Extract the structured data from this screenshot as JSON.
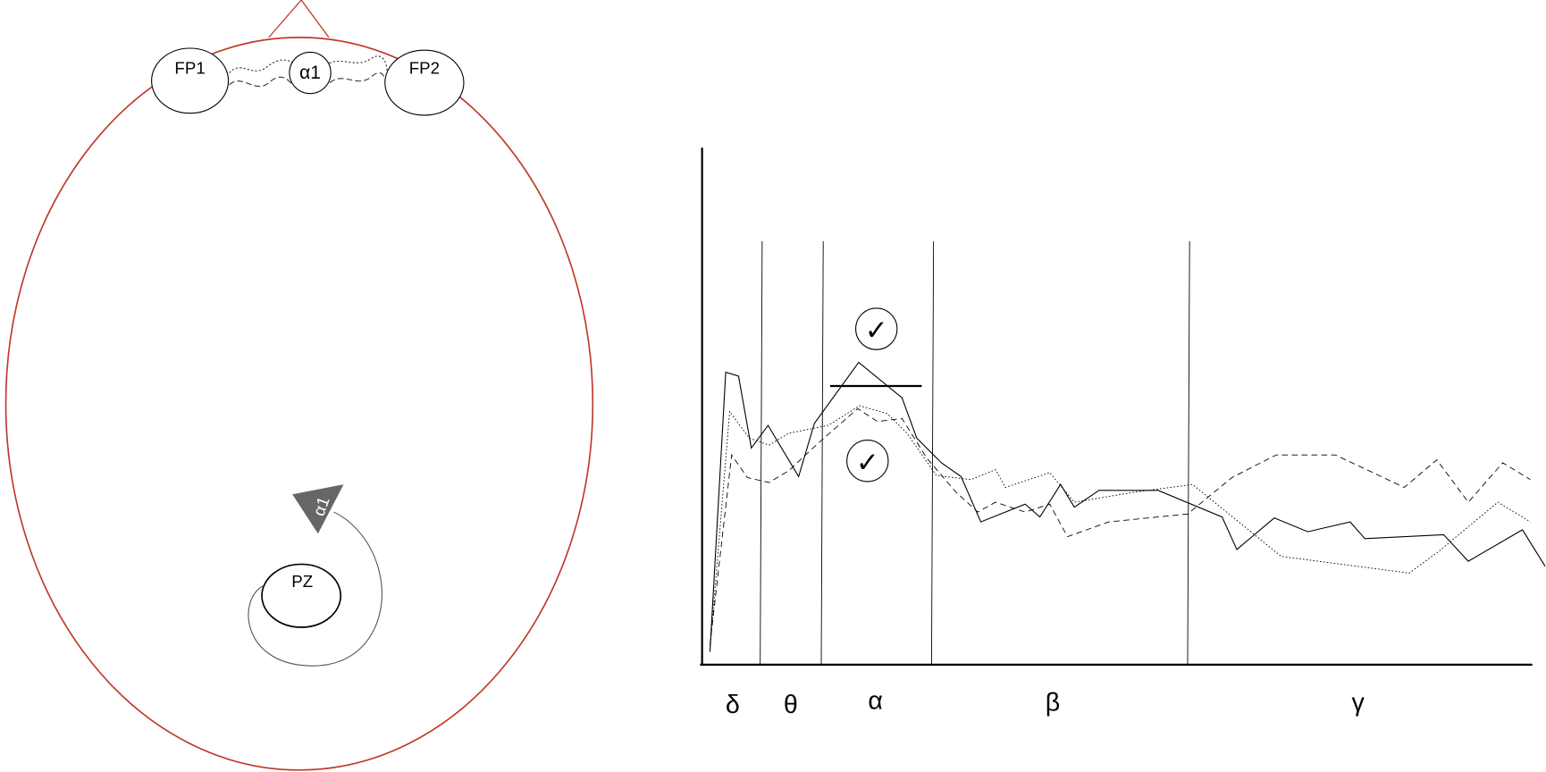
{
  "head": {
    "electrodes": [
      "FP1",
      "FP2",
      "PZ"
    ],
    "frontal_label": "α1",
    "parietal_label": "α1"
  },
  "spectrum": {
    "bands": [
      "δ",
      "θ",
      "α",
      "β",
      "γ"
    ],
    "marks": [
      "✓",
      "✓"
    ]
  }
}
